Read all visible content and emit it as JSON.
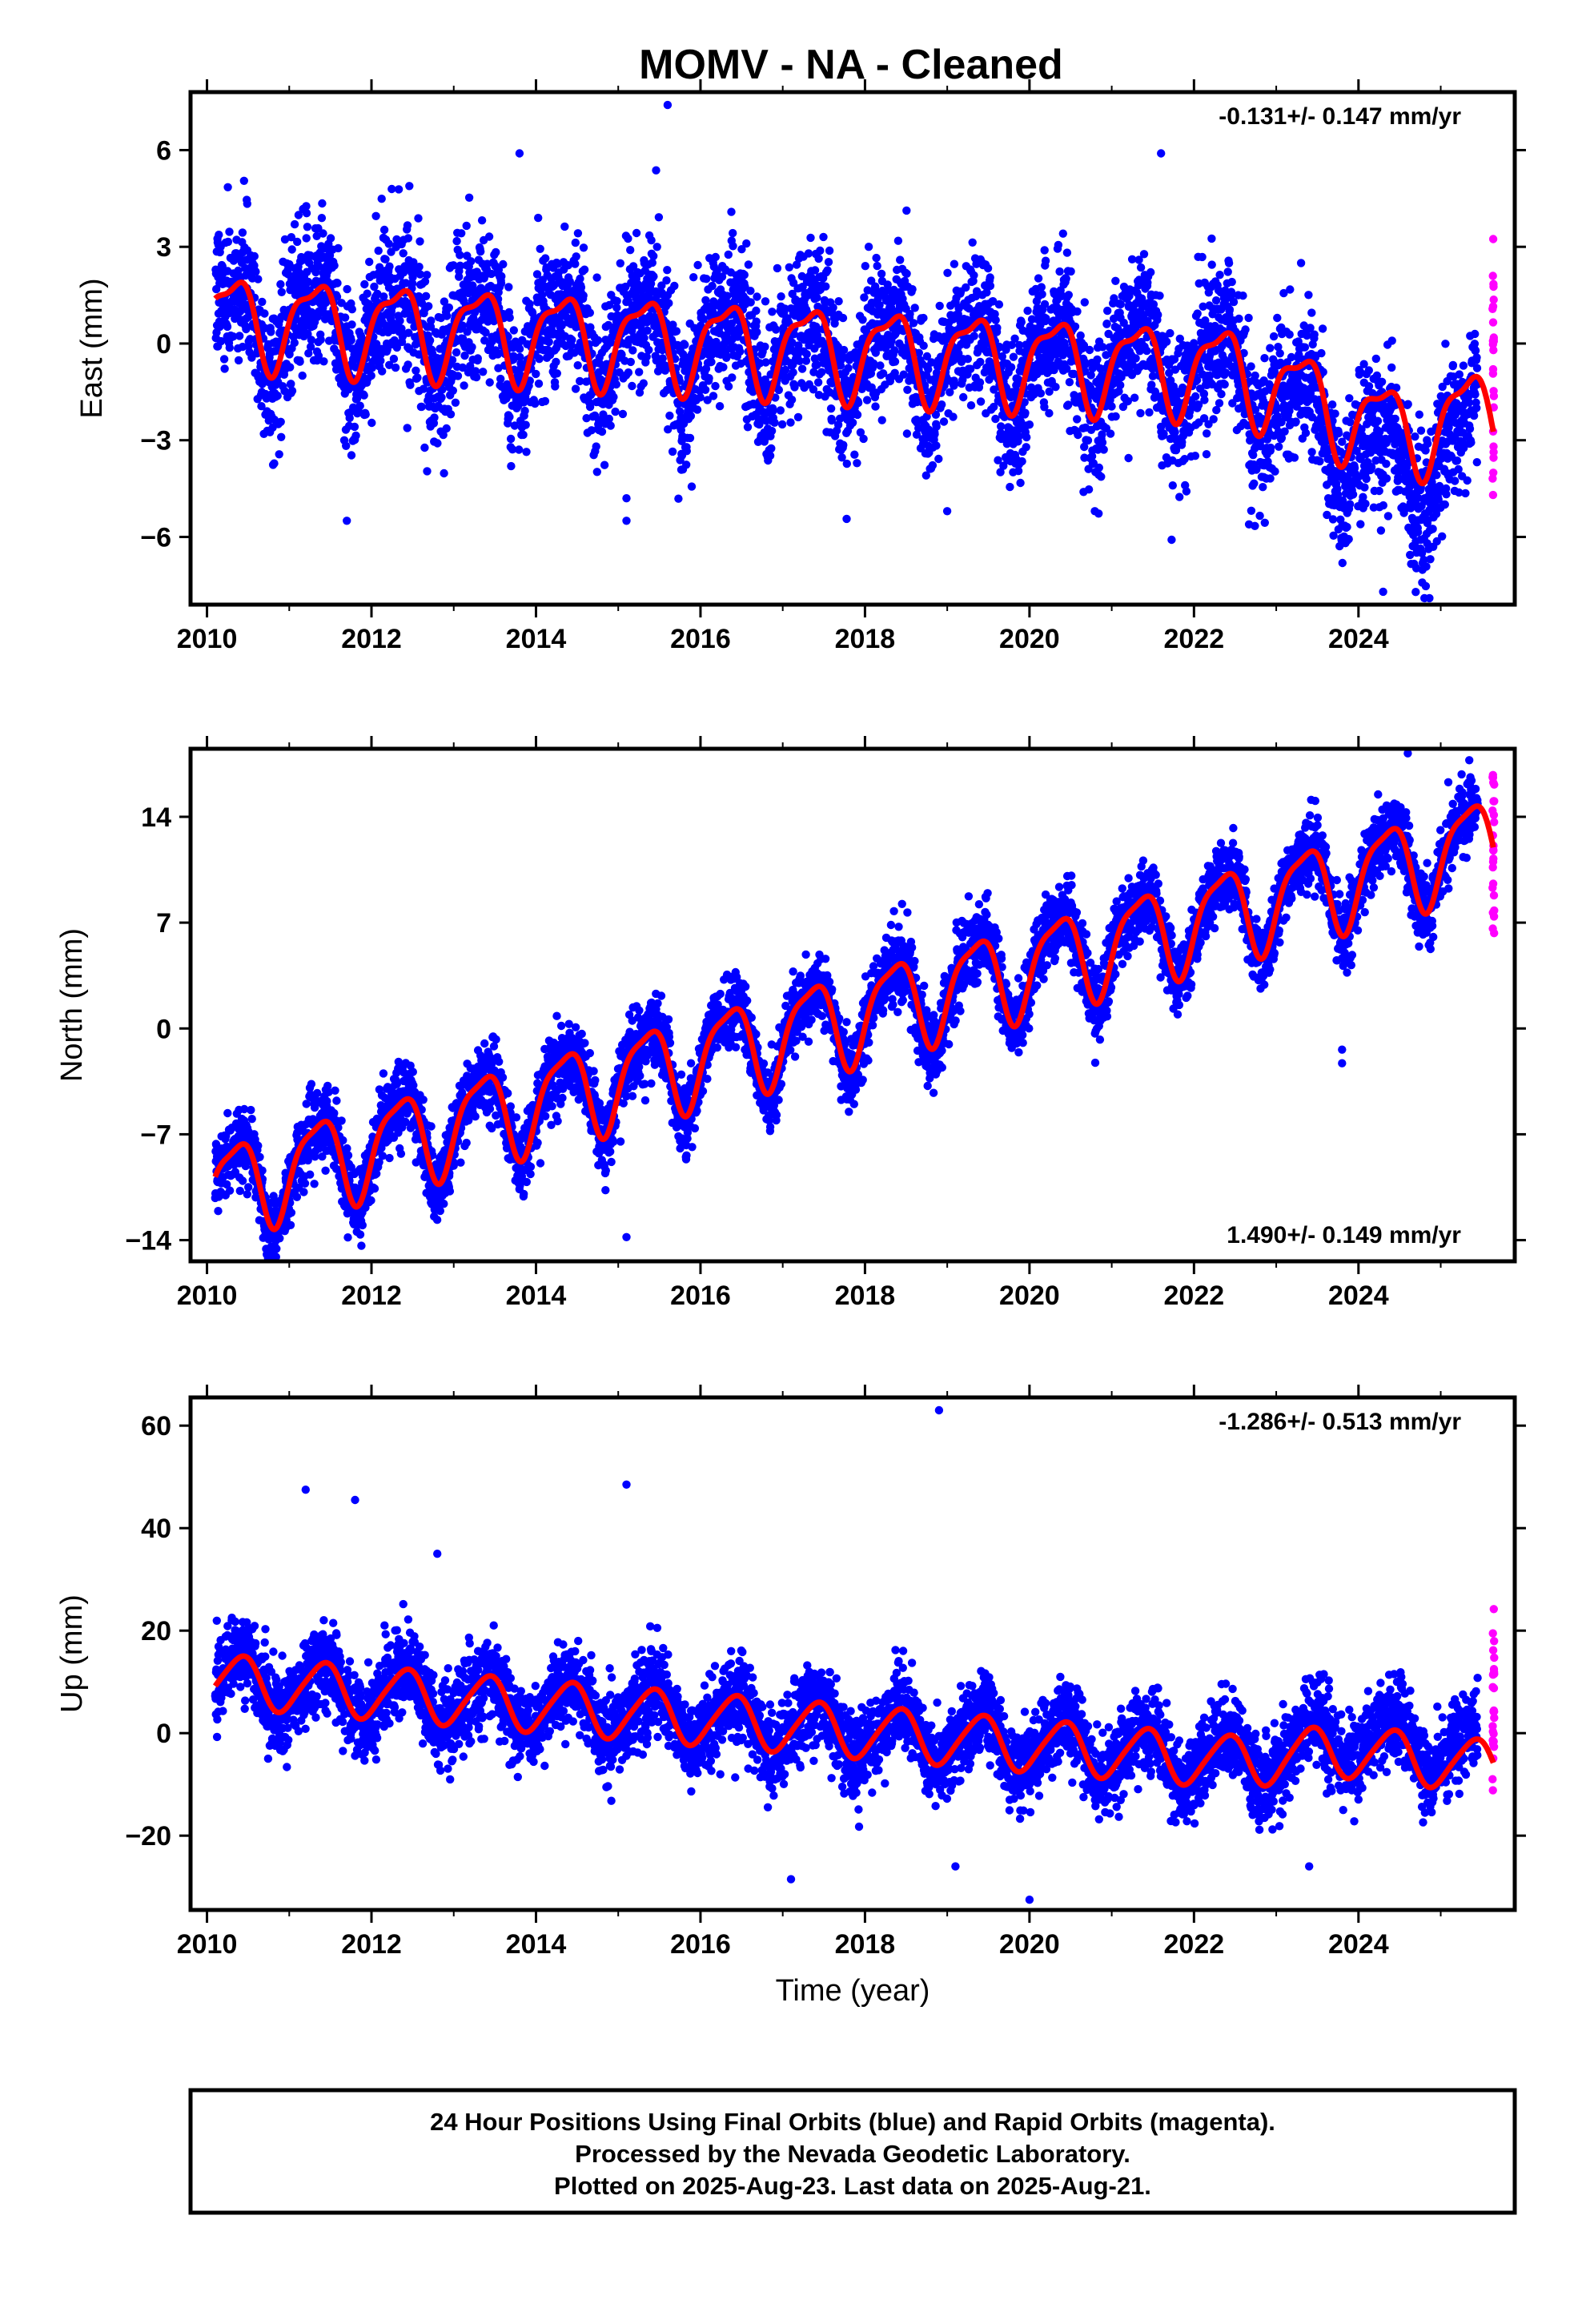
{
  "figure": {
    "title": "MOMV  - NA - Cleaned",
    "xlabel": "Time (year)",
    "footer": [
      "24 Hour Positions Using Final Orbits (blue) and Rapid Orbits (magenta).",
      "Processed by the Nevada Geodetic Laboratory.",
      "Plotted on 2025-Aug-23. Last data on 2025-Aug-21."
    ],
    "colors": {
      "final": "#0000ff",
      "rapid": "#ff00ff",
      "model": "#ff0000",
      "frame": "#000000"
    }
  },
  "chart_data": [
    {
      "type": "scatter",
      "component": "East",
      "ylabel": "East (mm)",
      "xlim": [
        2009.8,
        2025.9
      ],
      "ylim": [
        -8.1,
        7.8
      ],
      "yticks": [
        6,
        3,
        0,
        -3,
        -6
      ],
      "yticklabels": [
        "6",
        "3",
        "0",
        "−3",
        "−6"
      ],
      "xticks": [
        2010,
        2012,
        2014,
        2016,
        2018,
        2020,
        2022,
        2024
      ],
      "xticklabels": [
        "2010",
        "2012",
        "2014",
        "2016",
        "2018",
        "2020",
        "2022",
        "2024"
      ],
      "rate_text": "-0.131+/- 0.147 mm/yr",
      "rate_position": "top-right",
      "x_range_final": [
        2010.1,
        2025.45
      ],
      "x_range_rapid": [
        2025.45,
        2025.64
      ],
      "model": {
        "intercept_2010": 0.8,
        "slope": -0.131,
        "annual_sin": 1.25,
        "annual_cos": -0.45,
        "semiannual_sin": 0.1,
        "semiannual_cos": 0.45
      },
      "trend_extra": [
        [
          2010,
          0
        ],
        [
          2022.5,
          0
        ],
        [
          2024.5,
          -3.0
        ],
        [
          2025.6,
          -1.5
        ]
      ],
      "scatter_sigma": 1.1,
      "outliers": [
        [
          2015.1,
          -4.8
        ],
        [
          2015.1,
          -5.5
        ],
        [
          2011.7,
          -5.5
        ],
        [
          2019.0,
          -5.2
        ],
        [
          2024.3,
          -7.7
        ],
        [
          2015.6,
          7.4
        ],
        [
          2021.6,
          5.9
        ],
        [
          2013.8,
          5.9
        ]
      ],
      "rapid_range": [
        -5.3,
        3.9
      ]
    },
    {
      "type": "scatter",
      "component": "North",
      "ylabel": "North (mm)",
      "xlim": [
        2009.8,
        2025.9
      ],
      "ylim": [
        -15.4,
        18.5
      ],
      "yticks": [
        14,
        7,
        0,
        -7,
        -14
      ],
      "yticklabels": [
        "14",
        "7",
        "0",
        "−7",
        "−14"
      ],
      "xticks": [
        2010,
        2012,
        2014,
        2016,
        2018,
        2020,
        2022,
        2024
      ],
      "xticklabels": [
        "2010",
        "2012",
        "2014",
        "2016",
        "2018",
        "2020",
        "2022",
        "2024"
      ],
      "rate_text": "1.490+/- 0.149 mm/yr",
      "rate_position": "bottom-right",
      "x_range_final": [
        2010.1,
        2025.45
      ],
      "x_range_rapid": [
        2025.45,
        2025.64
      ],
      "model": {
        "intercept_2010": -10.8,
        "slope": 1.49,
        "annual_sin": 2.5,
        "annual_cos": -1.6,
        "semiannual_sin": 0.5,
        "semiannual_cos": 0.6
      },
      "trend_extra": [
        [
          2010,
          0
        ],
        [
          2025.6,
          0
        ]
      ],
      "scatter_sigma": 1.2,
      "outliers": [
        [
          2015.1,
          -13.8
        ],
        [
          2023.8,
          -1.4
        ],
        [
          2023.8,
          -2.3
        ],
        [
          2024.6,
          18.2
        ]
      ],
      "rapid_range": [
        6.3,
        17.2
      ]
    },
    {
      "type": "scatter",
      "component": "Up",
      "ylabel": "Up (mm)",
      "xlim": [
        2009.8,
        2025.9
      ],
      "ylim": [
        -34.5,
        65.5
      ],
      "yticks": [
        60,
        40,
        20,
        0,
        -20
      ],
      "yticklabels": [
        "60",
        "40",
        "20",
        "0",
        "−20"
      ],
      "xticks": [
        2010,
        2012,
        2014,
        2016,
        2018,
        2020,
        2022,
        2024
      ],
      "xticklabels": [
        "2010",
        "2012",
        "2014",
        "2016",
        "2018",
        "2020",
        "2022",
        "2024"
      ],
      "rate_text": "-1.286+/- 0.513 mm/yr",
      "rate_position": "top-right",
      "x_range_final": [
        2010.1,
        2025.45
      ],
      "x_range_rapid": [
        2025.45,
        2025.64
      ],
      "model": {
        "intercept_2010": 10.5,
        "slope": -1.286,
        "annual_sin": 2.8,
        "annual_cos": -4.2,
        "semiannual_sin": 0.4,
        "semiannual_cos": 0.6
      },
      "trend_extra": [
        [
          2010,
          0
        ],
        [
          2022.5,
          0
        ],
        [
          2023.8,
          7.0
        ],
        [
          2025.6,
          5.5
        ]
      ],
      "scatter_sigma": 4.0,
      "outliers": [
        [
          2011.2,
          47.5
        ],
        [
          2011.8,
          45.5
        ],
        [
          2015.1,
          48.5
        ],
        [
          2018.9,
          63.0
        ],
        [
          2012.8,
          35.0
        ],
        [
          2017.1,
          -28.5
        ],
        [
          2020.0,
          -32.5
        ],
        [
          2019.1,
          -26.0
        ],
        [
          2023.4,
          -26.0
        ]
      ],
      "rapid_range": [
        -12.0,
        25.0
      ]
    }
  ]
}
